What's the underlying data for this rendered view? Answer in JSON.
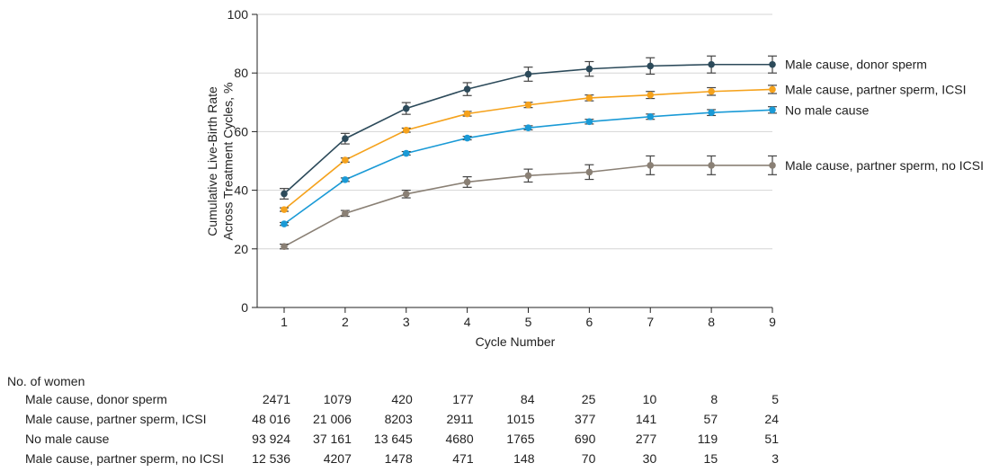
{
  "chart_data": {
    "type": "line",
    "xlabel": "Cycle Number",
    "ylabel_lines": [
      "Cumulative Live-Birth Rate",
      "Across Treatment Cycles, %"
    ],
    "x": [
      1,
      2,
      3,
      4,
      5,
      6,
      7,
      8,
      9
    ],
    "xlim": [
      1,
      9
    ],
    "ylim": [
      0,
      100
    ],
    "yticks": [
      0,
      20,
      40,
      60,
      80,
      100
    ],
    "grid": "horizontal",
    "series": [
      {
        "name": "Male cause, donor sperm",
        "color": "#2c4a5a",
        "values": [
          38.8,
          57.6,
          67.9,
          74.5,
          79.6,
          81.4,
          82.4,
          82.9,
          82.9
        ],
        "lower": [
          37.0,
          55.8,
          65.9,
          72.3,
          77.2,
          78.9,
          79.6,
          80.0,
          80.0
        ],
        "upper": [
          40.6,
          59.4,
          69.9,
          76.7,
          82.0,
          83.9,
          85.2,
          85.8,
          85.8
        ]
      },
      {
        "name": "Male cause, partner sperm, ICSI",
        "color": "#f5a21c",
        "values": [
          33.4,
          50.3,
          60.5,
          66.1,
          69.1,
          71.5,
          72.5,
          73.7,
          74.4
        ],
        "lower": [
          32.8,
          49.6,
          59.8,
          65.3,
          68.2,
          70.5,
          71.3,
          72.4,
          73.0
        ],
        "upper": [
          34.0,
          51.0,
          61.2,
          66.9,
          70.0,
          72.5,
          73.7,
          75.0,
          75.8
        ]
      },
      {
        "name": "No male cause",
        "color": "#1a9ad6",
        "values": [
          28.5,
          43.6,
          52.6,
          57.8,
          61.3,
          63.4,
          65.1,
          66.5,
          67.4
        ],
        "lower": [
          28.0,
          43.0,
          52.0,
          57.2,
          60.6,
          62.6,
          64.2,
          65.5,
          66.3
        ],
        "upper": [
          29.0,
          44.2,
          53.2,
          58.4,
          62.0,
          64.2,
          66.0,
          67.5,
          68.5
        ]
      },
      {
        "name": "Male cause, partner sperm, no ICSI",
        "color": "#8a8075",
        "values": [
          20.8,
          32.1,
          38.7,
          42.8,
          45.0,
          46.2,
          48.5,
          48.5,
          48.5
        ],
        "lower": [
          20.0,
          31.1,
          37.4,
          41.0,
          42.8,
          43.7,
          45.3,
          45.3,
          45.3
        ],
        "upper": [
          21.6,
          33.1,
          40.0,
          44.6,
          47.2,
          48.7,
          51.7,
          51.7,
          51.7
        ]
      }
    ],
    "risk_table": {
      "title": "No. of women",
      "rows": [
        {
          "name": "Male cause, donor sperm",
          "values": [
            "2471",
            "1079",
            "420",
            "177",
            "84",
            "25",
            "10",
            "8",
            "5"
          ]
        },
        {
          "name": "Male cause, partner sperm, ICSI",
          "values": [
            "48 016",
            "21 006",
            "8203",
            "2911",
            "1015",
            "377",
            "141",
            "57",
            "24"
          ]
        },
        {
          "name": "No male cause",
          "values": [
            "93 924",
            "37 161",
            "13 645",
            "4680",
            "1765",
            "690",
            "277",
            "119",
            "51"
          ]
        },
        {
          "name": "Male cause, partner sperm, no ICSI",
          "values": [
            "12 536",
            "4207",
            "1478",
            "471",
            "148",
            "70",
            "30",
            "15",
            "3"
          ]
        }
      ]
    }
  }
}
